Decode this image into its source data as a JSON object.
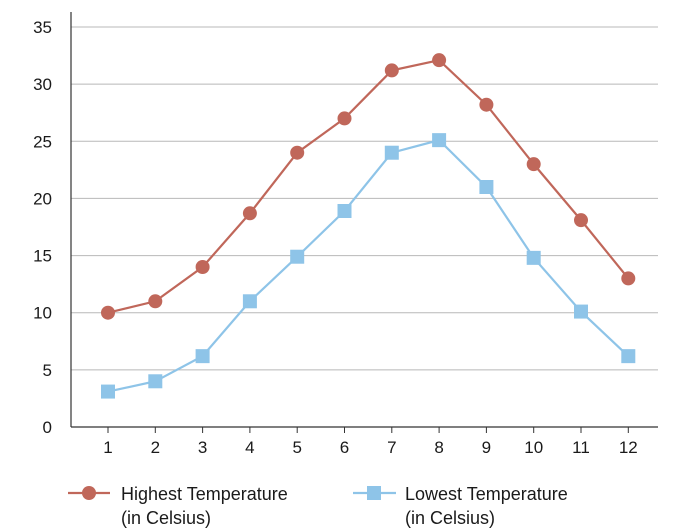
{
  "chart_data": {
    "type": "line",
    "title": "",
    "xlabel": "",
    "ylabel": "",
    "categories": [
      "1",
      "2",
      "3",
      "4",
      "5",
      "6",
      "7",
      "8",
      "9",
      "10",
      "11",
      "12"
    ],
    "ylim": [
      0,
      35
    ],
    "yticks": [
      "0",
      "5",
      "10",
      "15",
      "20",
      "25",
      "30",
      "35"
    ],
    "grid": "horizontal",
    "legend_position": "bottom",
    "series": [
      {
        "name": "Highest Temperature (in Celsius)",
        "name_lines": [
          "Highest Temperature",
          "(in Celsius)"
        ],
        "values": [
          10,
          11,
          14,
          18.7,
          24,
          27,
          31.2,
          32.1,
          28.2,
          23,
          18.1,
          13
        ],
        "color": "#c0675a",
        "marker": "circle"
      },
      {
        "name": "Lowest Temperature (in Celsius)",
        "name_lines": [
          "Lowest Temperature",
          "(in Celsius)"
        ],
        "values": [
          3.1,
          4,
          6.2,
          11,
          14.9,
          18.9,
          24,
          25.1,
          21,
          14.8,
          10.1,
          6.2
        ],
        "color": "#8ec4e8",
        "marker": "square"
      }
    ]
  }
}
